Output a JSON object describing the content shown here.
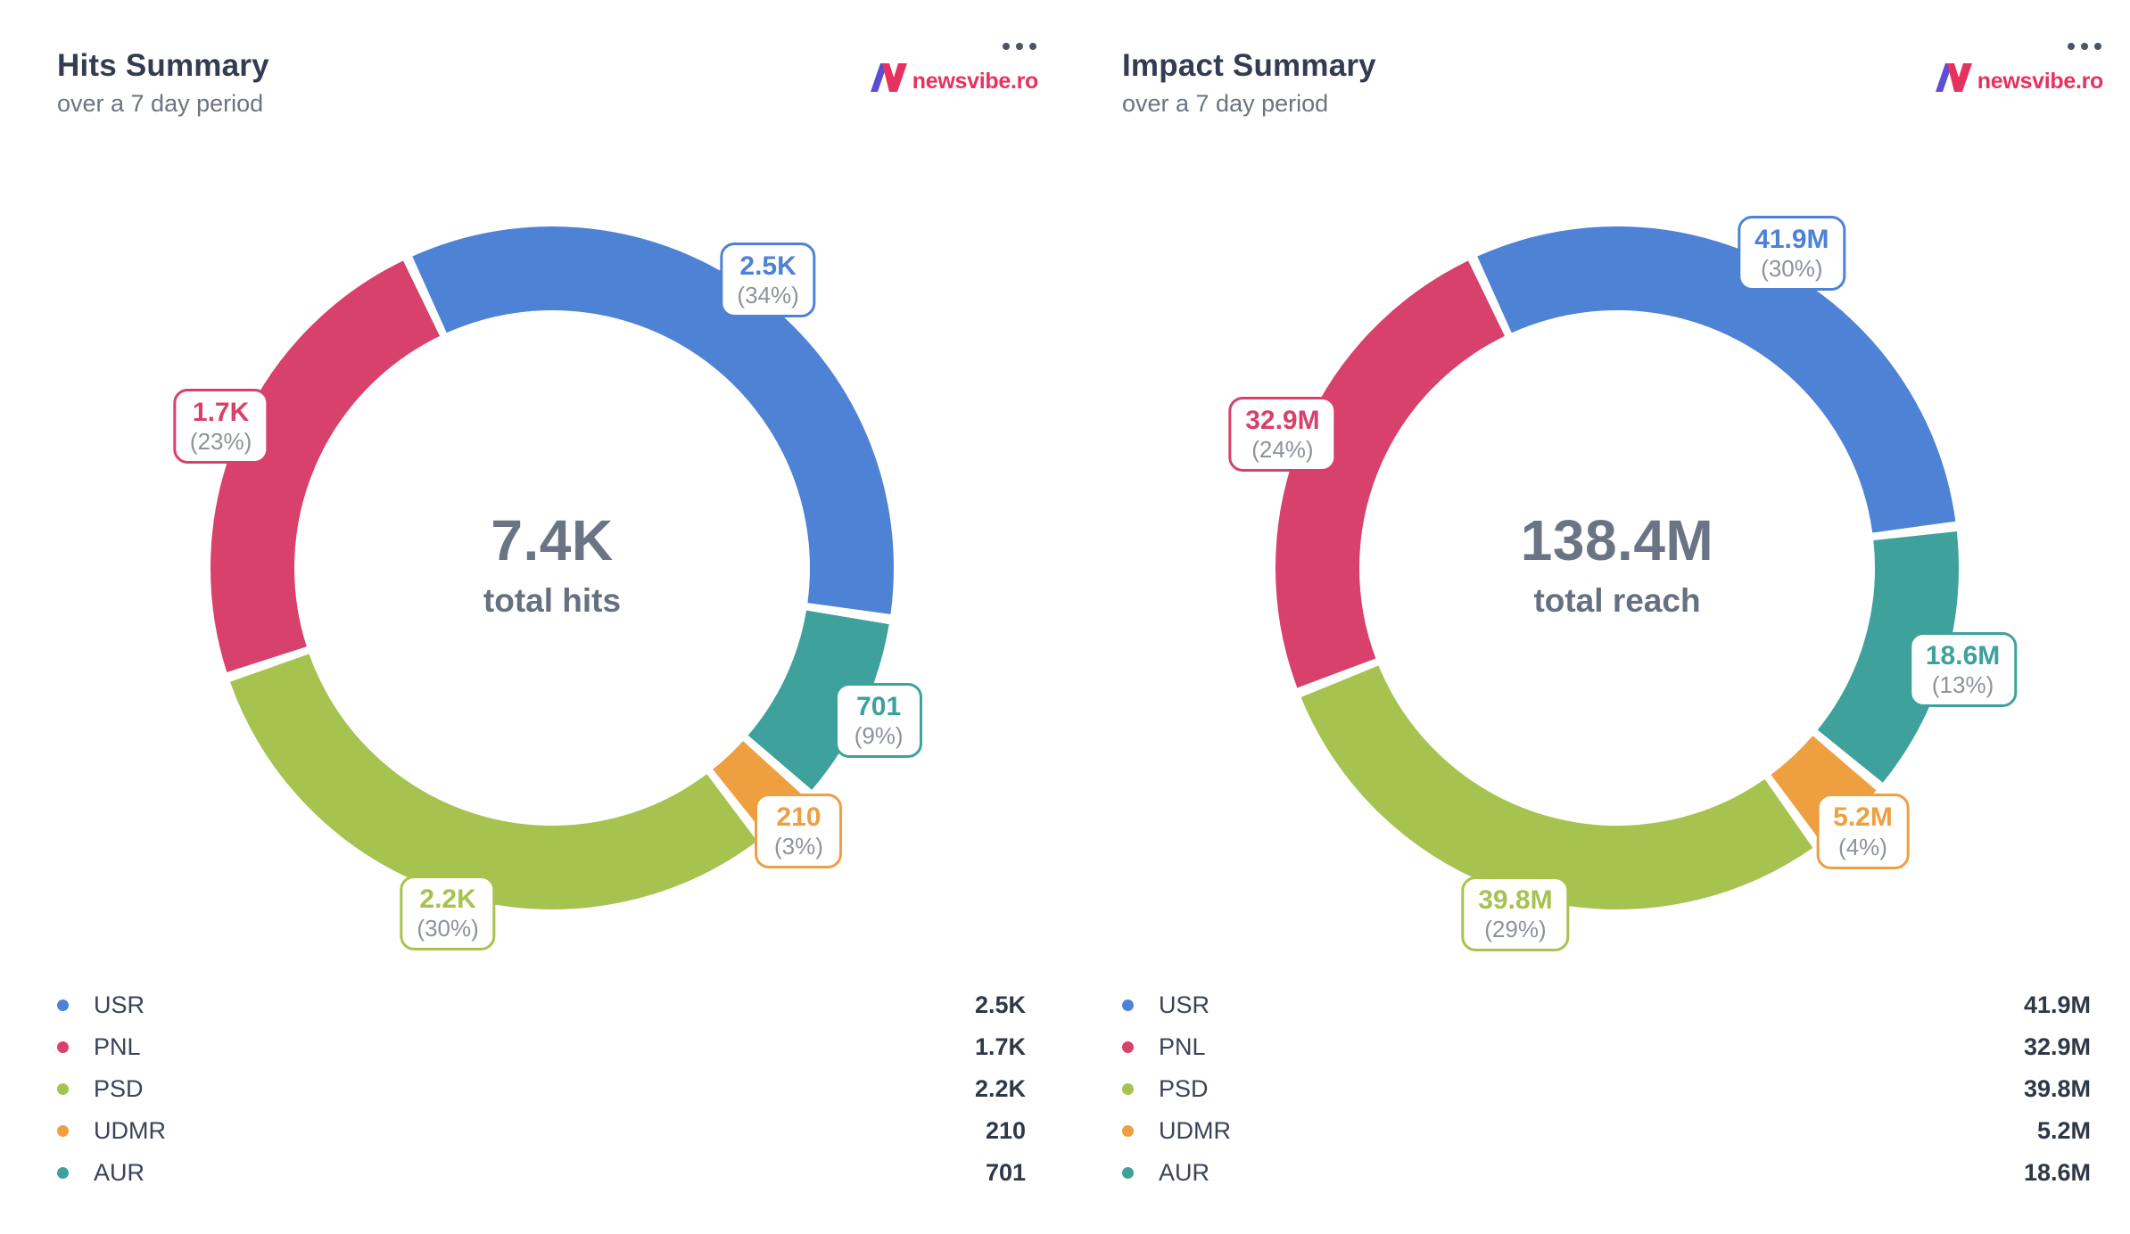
{
  "brand": {
    "logo_text": "newsvibe.ro",
    "logo_pink": "#e8315e",
    "logo_purple": "#5a4fd4",
    "menu_icon": "ellipsis-icon"
  },
  "chart_data": [
    {
      "type": "pie",
      "variant": "donut",
      "title": "Hits Summary",
      "subtitle": "over a 7 day period",
      "center_value": "7.4K",
      "center_label": "total hits",
      "legend_position": "bottom",
      "slices": [
        {
          "label": "USR",
          "value_display": "2.5K",
          "pct": 34,
          "pct_display": "(34%)",
          "color": "#4d82d5"
        },
        {
          "label": "PNL",
          "value_display": "1.7K",
          "pct": 23,
          "pct_display": "(23%)",
          "color": "#d7416b"
        },
        {
          "label": "PSD",
          "value_display": "2.2K",
          "pct": 30,
          "pct_display": "(30%)",
          "color": "#a6c350"
        },
        {
          "label": "UDMR",
          "value_display": "210",
          "pct": 3,
          "pct_display": "(3%)",
          "color": "#ee9f40"
        },
        {
          "label": "AUR",
          "value_display": "701",
          "pct": 9,
          "pct_display": "(9%)",
          "color": "#3fa19c"
        }
      ]
    },
    {
      "type": "pie",
      "variant": "donut",
      "title": "Impact Summary",
      "subtitle": "over a 7 day period",
      "center_value": "138.4M",
      "center_label": "total reach",
      "legend_position": "bottom",
      "slices": [
        {
          "label": "USR",
          "value_display": "41.9M",
          "pct": 30,
          "pct_display": "(30%)",
          "color": "#4d82d5"
        },
        {
          "label": "PNL",
          "value_display": "32.9M",
          "pct": 24,
          "pct_display": "(24%)",
          "color": "#d7416b"
        },
        {
          "label": "PSD",
          "value_display": "39.8M",
          "pct": 29,
          "pct_display": "(29%)",
          "color": "#a6c350"
        },
        {
          "label": "UDMR",
          "value_display": "5.2M",
          "pct": 4,
          "pct_display": "(4%)",
          "color": "#ee9f40"
        },
        {
          "label": "AUR",
          "value_display": "18.6M",
          "pct": 13,
          "pct_display": "(13%)",
          "color": "#3fa19c"
        }
      ]
    }
  ]
}
